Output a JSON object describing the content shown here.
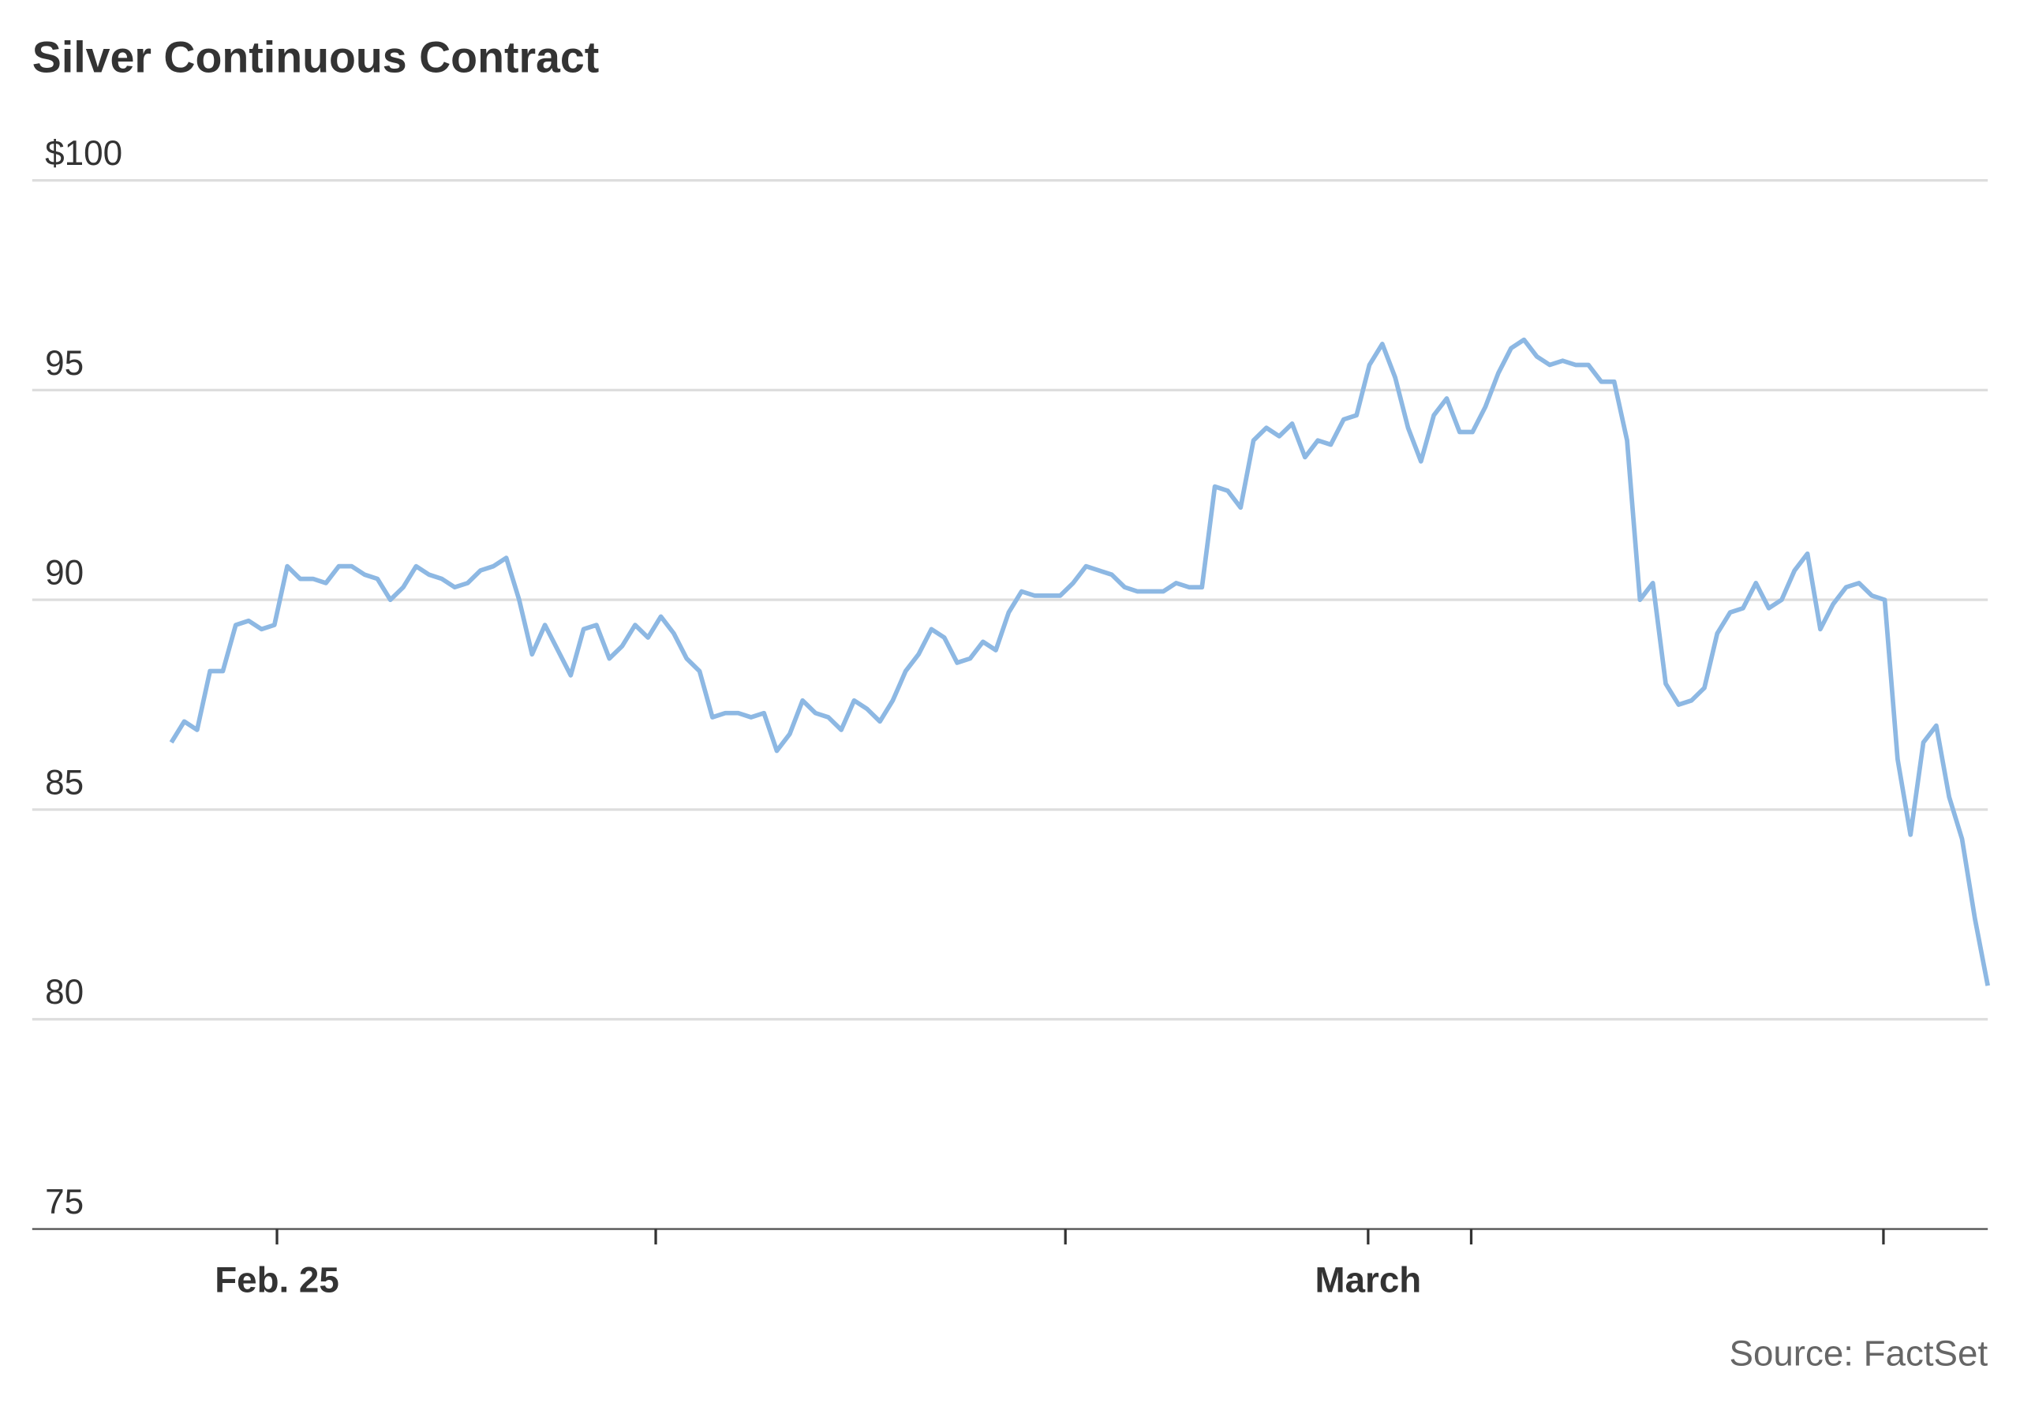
{
  "chart_data": {
    "type": "line",
    "title": "Silver Continuous Contract",
    "source": "Source: FactSet",
    "x": [
      0,
      1,
      2,
      3,
      4,
      5,
      6,
      7,
      8,
      9,
      10,
      11,
      12,
      13,
      14,
      15,
      16,
      17,
      18,
      19,
      20,
      21,
      22,
      23,
      24,
      25,
      26,
      27,
      28,
      29,
      30,
      31,
      32,
      33,
      34,
      35,
      36,
      37,
      38,
      39,
      40,
      41,
      42,
      43,
      44,
      45,
      46,
      47,
      48,
      49,
      50,
      51,
      52,
      53,
      54,
      55,
      56,
      57,
      58,
      59,
      60,
      61,
      62,
      63,
      64,
      65,
      66,
      67,
      68,
      69,
      70,
      71,
      72,
      73,
      74,
      75,
      76,
      77,
      78,
      79,
      80,
      81,
      82,
      83,
      84,
      85,
      86,
      87,
      88,
      89,
      90,
      91,
      92,
      93,
      94,
      95,
      96,
      97,
      98,
      99,
      100,
      101,
      102,
      103,
      104,
      105,
      106,
      107,
      108,
      109,
      110,
      111,
      112,
      113,
      114,
      115,
      116,
      117,
      118,
      119,
      120,
      121,
      122,
      123,
      124,
      125,
      126,
      127,
      128,
      129,
      130,
      131,
      132,
      133,
      134,
      135,
      136,
      137,
      138,
      139,
      140,
      141
    ],
    "series": [
      {
        "name": "Silver",
        "color": "#8db8e3",
        "values": [
          86.6,
          87.1,
          86.9,
          88.3,
          88.3,
          89.4,
          89.5,
          89.3,
          89.4,
          90.8,
          90.5,
          90.5,
          90.4,
          90.8,
          90.8,
          90.6,
          90.5,
          90.0,
          90.3,
          90.8,
          90.6,
          90.5,
          90.3,
          90.4,
          90.7,
          90.8,
          91.0,
          90.0,
          88.7,
          89.4,
          88.8,
          88.2,
          89.3,
          89.4,
          88.6,
          88.9,
          89.4,
          89.1,
          89.6,
          89.2,
          88.6,
          88.3,
          87.2,
          87.3,
          87.3,
          87.2,
          87.3,
          86.4,
          86.8,
          87.6,
          87.3,
          87.2,
          86.9,
          87.6,
          87.4,
          87.1,
          87.6,
          88.3,
          88.7,
          89.3,
          89.1,
          88.5,
          88.6,
          89.0,
          88.8,
          89.7,
          90.2,
          90.1,
          90.1,
          90.1,
          90.4,
          90.8,
          90.7,
          90.6,
          90.3,
          90.2,
          90.2,
          90.2,
          90.4,
          90.3,
          90.3,
          92.7,
          92.6,
          92.2,
          93.8,
          94.1,
          93.9,
          94.2,
          93.4,
          93.8,
          93.7,
          94.3,
          94.4,
          95.6,
          96.1,
          95.3,
          94.1,
          93.3,
          94.4,
          94.8,
          94.0,
          94.0,
          94.6,
          95.4,
          96.0,
          96.2,
          95.8,
          95.6,
          95.7,
          95.6,
          95.6,
          95.2,
          95.2,
          93.8,
          90.0,
          90.4,
          88.0,
          87.5,
          87.6,
          87.9,
          89.2,
          89.7,
          89.8,
          90.4,
          89.8,
          90.0,
          90.7,
          91.1,
          89.3,
          89.9,
          90.3,
          90.4,
          90.1,
          90.0,
          86.2,
          84.4,
          86.6,
          87.0,
          85.3,
          84.3,
          82.4,
          80.8
        ]
      }
    ],
    "xlim": [
      -10.8,
      141
    ],
    "xticks": [
      {
        "value": 8.2,
        "label": "Feb. 25"
      },
      {
        "value": 37.6,
        "label": null
      },
      {
        "value": 69.4,
        "label": null
      },
      {
        "value": 92.9,
        "label": "March"
      },
      {
        "value": 100.9,
        "label": null
      },
      {
        "value": 132.9,
        "label": null
      }
    ],
    "ylim": [
      75,
      100
    ],
    "yticks": [
      75,
      80,
      85,
      90,
      95,
      {
        "value": 100,
        "label": "$100"
      }
    ],
    "grid": true
  }
}
